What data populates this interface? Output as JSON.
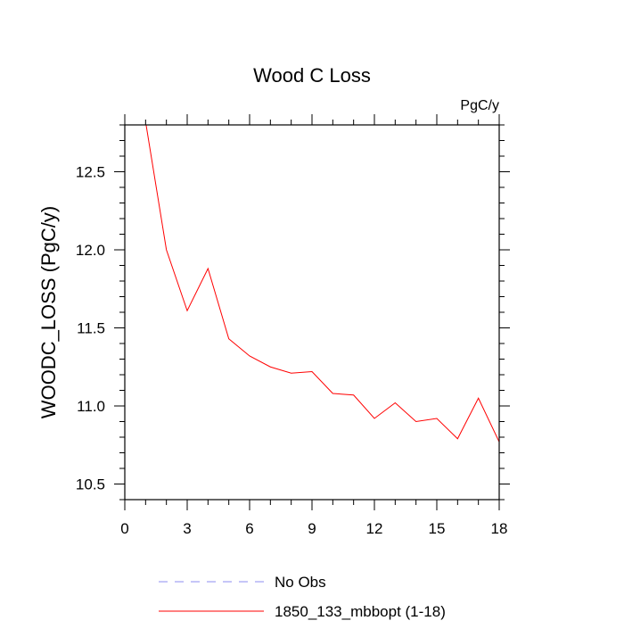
{
  "chart_data": {
    "type": "line",
    "title": "Wood C Loss",
    "units_label": "PgC/y",
    "xlabel": "",
    "ylabel": "WOODC_LOSS  (PgC/y)",
    "xlim": [
      0,
      18
    ],
    "ylim": [
      10.4,
      12.8
    ],
    "xticks": [
      0,
      3,
      6,
      9,
      12,
      15,
      18
    ],
    "xtick_labels": [
      "0",
      "3",
      "6",
      "9",
      "12",
      "15",
      "18"
    ],
    "yticks": [
      10.5,
      11.0,
      11.5,
      12.0,
      12.5
    ],
    "ytick_labels": [
      "10.5",
      "11.0",
      "11.5",
      "12.0",
      "12.5"
    ],
    "grid": false,
    "legend_position": "bottom",
    "series": [
      {
        "name": "1850_133_mbbopt (1-18)",
        "color": "#ff0000",
        "dash": "solid",
        "x": [
          1,
          2,
          3,
          4,
          5,
          6,
          7,
          8,
          9,
          10,
          11,
          12,
          13,
          14,
          15,
          16,
          17,
          18
        ],
        "y": [
          12.82,
          12.0,
          11.61,
          11.88,
          11.43,
          11.32,
          11.25,
          11.21,
          11.22,
          11.08,
          11.07,
          10.92,
          11.02,
          10.9,
          10.92,
          10.79,
          11.05,
          10.77
        ]
      }
    ],
    "legend": [
      {
        "label": "No Obs",
        "color": "#8c8cf0",
        "dash": "dashed"
      },
      {
        "label": "1850_133_mbbopt (1-18)",
        "color": "#ff0000",
        "dash": "solid"
      }
    ]
  }
}
